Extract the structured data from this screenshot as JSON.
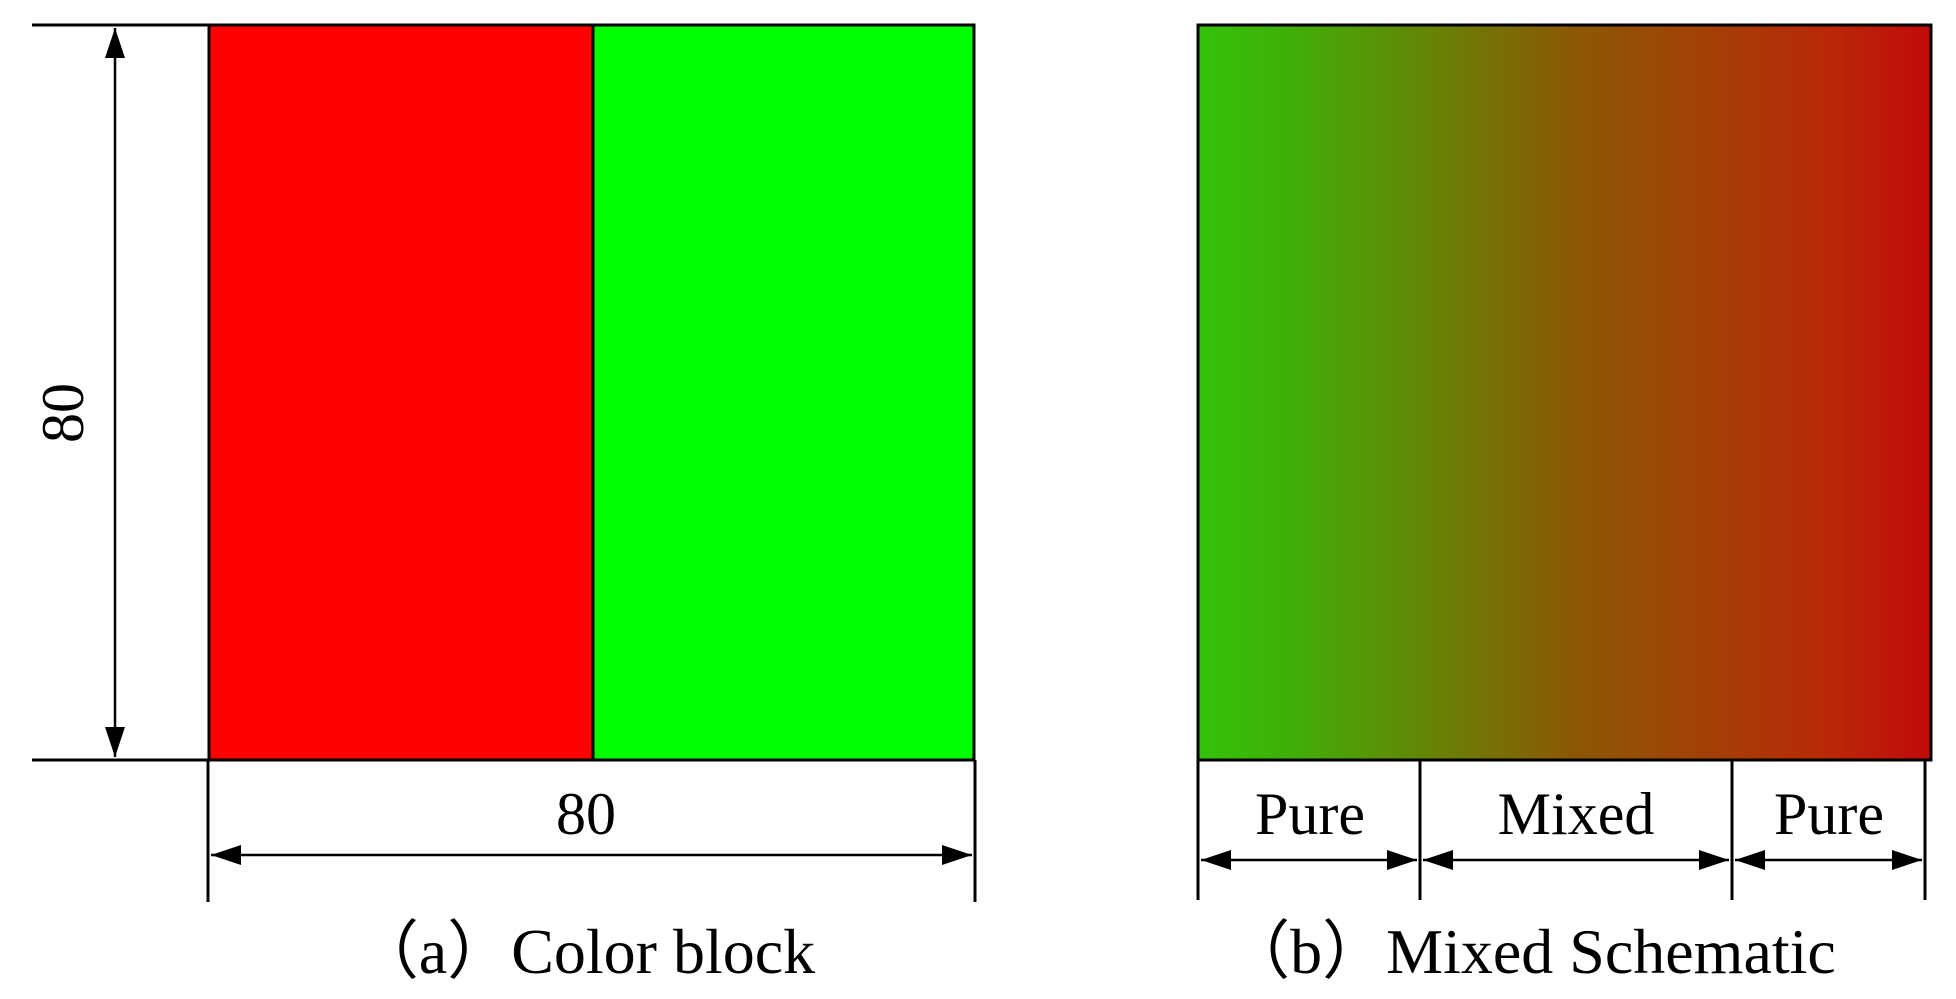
{
  "panel_a": {
    "caption": "（a）Color block",
    "height_dimension": "80",
    "width_dimension": "80",
    "left_color": "#ff0000",
    "right_color": "#00ff00"
  },
  "panel_b": {
    "caption": "（b）Mixed Schematic",
    "gradient_start_color": "#33c20a",
    "gradient_mid_color": "#8a5a05",
    "gradient_end_color": "#c20a0a",
    "segments": [
      {
        "label": "Pure"
      },
      {
        "label": "Mixed"
      },
      {
        "label": "Pure"
      }
    ]
  }
}
